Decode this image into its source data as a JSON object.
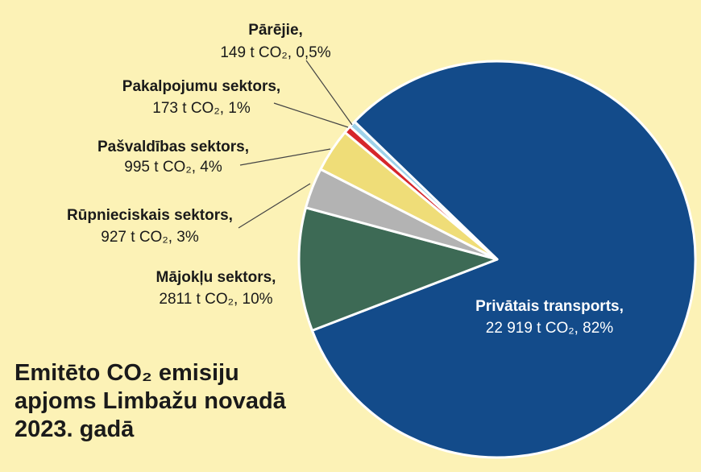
{
  "chart_data": {
    "type": "pie",
    "title": "Emitēto CO₂ emisiju apjoms Limbažu novadā 2023. gadā",
    "categories": [
      "Privātais transports,",
      "Mājokļu sektors,",
      "Rūpnieciskais sektors,",
      "Pašvaldības sektors,",
      "Pakalpojumu sektors,",
      "Pārējie,"
    ],
    "values": [
      22919,
      2811,
      927,
      995,
      173,
      149
    ],
    "value_labels": [
      "22 919 t CO₂, 82%",
      "2811 t CO₂, 10%",
      "927 t CO₂, 3%",
      "995 t CO₂, 4%",
      "173 t CO₂, 1%",
      "149 t CO₂, 0,5%"
    ],
    "colors": [
      "#134b8a",
      "#3d6a55",
      "#b3b3b3",
      "#efdd78",
      "#d6262b",
      "#9fd2ea"
    ]
  }
}
